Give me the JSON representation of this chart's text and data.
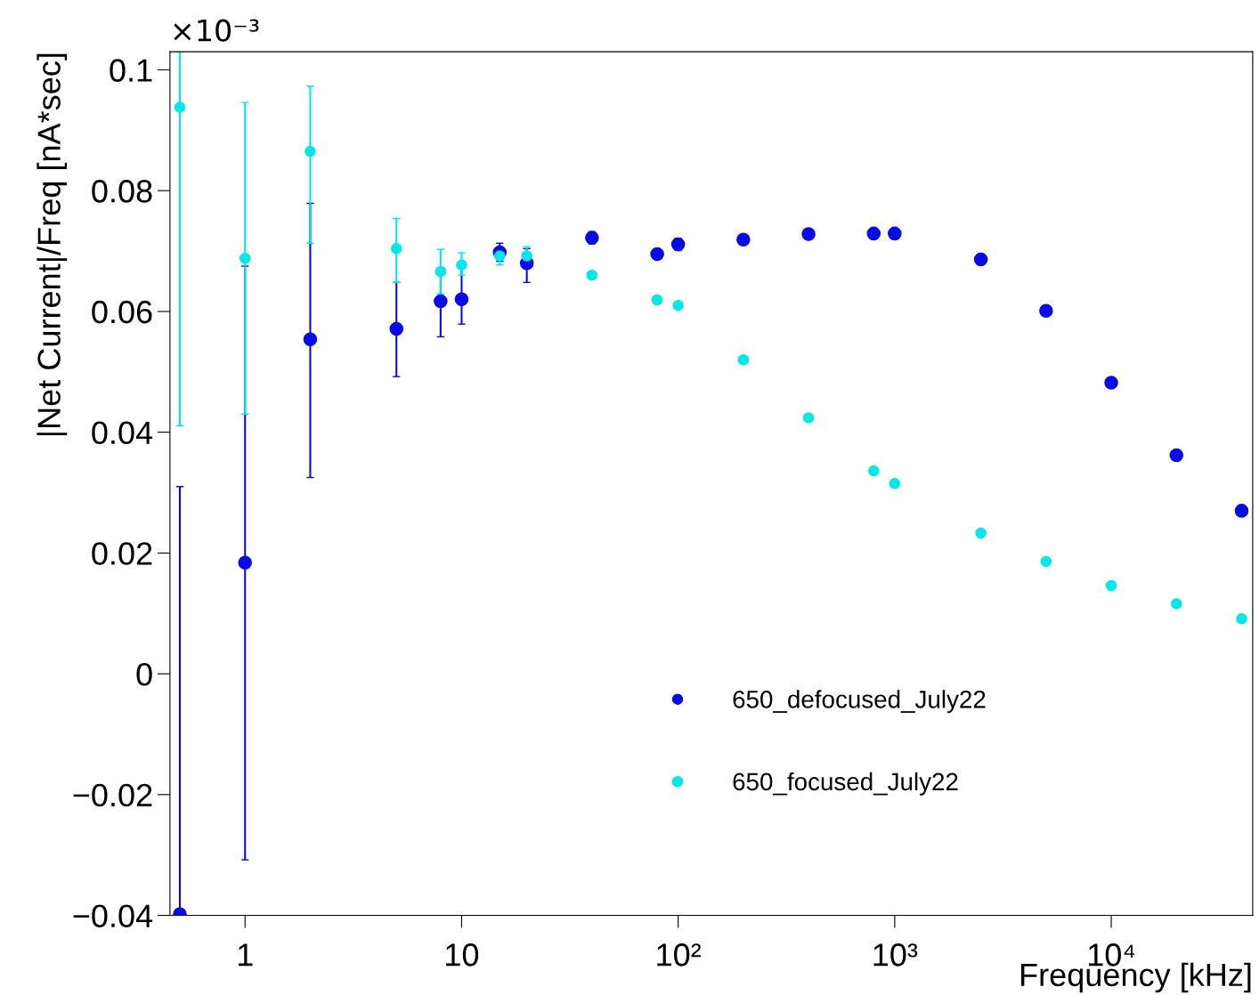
{
  "chart_data": {
    "type": "scatter",
    "xlabel": "Frequency [kHz]",
    "ylabel": "|Net Current|/Freq [nA*sec]",
    "annotations": [
      "×10⁻³"
    ],
    "log": "x",
    "xlim": [
      0.45,
      45000
    ],
    "ylim": [
      -0.04,
      0.103
    ],
    "xticks": [
      1,
      10,
      {
        "value": 100,
        "label": "10²"
      },
      {
        "value": 1000,
        "label": "10³"
      },
      {
        "value": 10000,
        "label": "10⁴"
      }
    ],
    "yticks": [
      {
        "value": -0.04,
        "label": "−0.04"
      },
      {
        "value": -0.02,
        "label": "−0.02"
      },
      0,
      0.02,
      0.04,
      0.06,
      0.08,
      0.1
    ],
    "grid": false,
    "legend": "bottom",
    "marker": "circle",
    "series": [
      {
        "name": "650_defocused_July22",
        "color": "#0a0ae6",
        "x": [
          0.5,
          1,
          2,
          5,
          8,
          10,
          15,
          20,
          40,
          80,
          100,
          200,
          400,
          800,
          1000,
          2500,
          5000,
          10000,
          20000,
          40000
        ],
        "values": [
          -0.0398,
          0.0184,
          0.0554,
          0.0571,
          0.0617,
          0.062,
          0.0698,
          0.068,
          0.0722,
          0.0695,
          0.0711,
          0.0719,
          0.0728,
          0.0729,
          0.0729,
          0.0686,
          0.0601,
          0.0482,
          0.0362,
          0.027
        ],
        "errors": [
          [
            -0.04,
            0.031
          ],
          [
            -0.0308,
            0.0675
          ],
          [
            0.0325,
            0.0779
          ],
          [
            0.0492,
            0.0648
          ],
          [
            0.0558,
            0.0672
          ],
          [
            0.0579,
            0.0672
          ],
          0.0015,
          [
            0.0648,
            0.0704
          ],
          0.001,
          null,
          0.001,
          null,
          null,
          null,
          null,
          null,
          null,
          null,
          null,
          null
        ]
      },
      {
        "name": "650_focused_July22",
        "color": "#00e8e8",
        "x": [
          0.5,
          1,
          2,
          5,
          8,
          10,
          15,
          20,
          40,
          80,
          100,
          200,
          400,
          800,
          1000,
          2500,
          5000,
          10000,
          20000,
          40000
        ],
        "values": [
          0.0938,
          0.0688,
          0.0865,
          0.0704,
          0.0666,
          0.0677,
          0.0692,
          0.0692,
          0.066,
          0.0619,
          0.061,
          0.052,
          0.0424,
          0.0336,
          0.0315,
          0.0233,
          0.0186,
          0.0146,
          0.0116,
          0.0091
        ],
        "errors": [
          [
            0.0411,
            0.103
          ],
          [
            0.043,
            0.0946
          ],
          [
            0.0713,
            0.0973
          ],
          [
            0.0648,
            0.0754
          ],
          [
            0.0629,
            0.0703
          ],
          [
            0.066,
            0.0697
          ],
          0.0015,
          0.0015,
          null,
          null,
          null,
          null,
          null,
          null,
          null,
          null,
          null,
          null,
          null,
          null
        ]
      }
    ]
  }
}
